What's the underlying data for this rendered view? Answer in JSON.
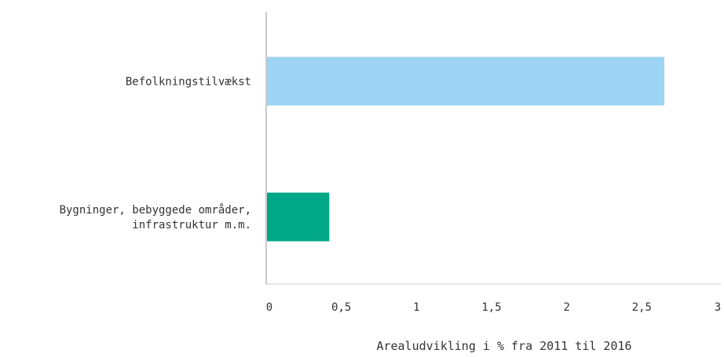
{
  "chart_data": {
    "type": "bar",
    "orientation": "horizontal",
    "categories": [
      [
        "Befolkningstilvækst"
      ],
      [
        "Bygninger, bebyggede områder,",
        "infrastruktur m.m."
      ]
    ],
    "values": [
      2.65,
      0.42
    ],
    "colors": [
      "#9dd3f3",
      "#00a887"
    ],
    "xlabel": "Arealudvikling i % fra 2011 til 2016",
    "xlim": [
      0,
      3
    ],
    "xticks": [
      0,
      0.5,
      1,
      1.5,
      2,
      2.5,
      3
    ],
    "xtick_labels": [
      "0",
      "0,5",
      "1",
      "1,5",
      "2",
      "2,5",
      "3"
    ],
    "axis_color": "#cccccc",
    "grid": false,
    "legend": "none"
  }
}
